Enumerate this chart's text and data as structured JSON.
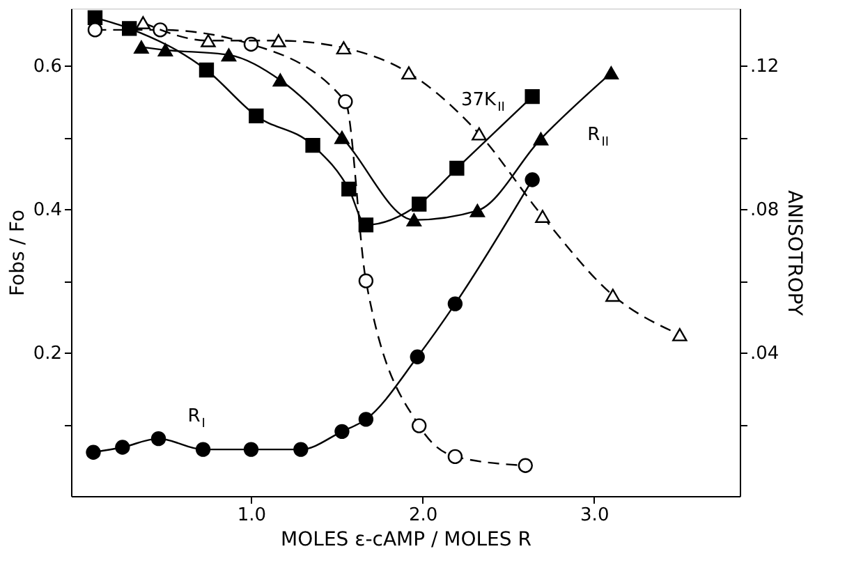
{
  "chart_data": {
    "type": "line",
    "xlabel": "MOLES ε-cAMP / MOLES R",
    "ylabel": "Fobs / Fo",
    "y2label": "ANISOTROPY",
    "xlim": [
      -0.05,
      3.85
    ],
    "xticks": [
      {
        "value": 1,
        "label": "1.0"
      },
      {
        "value": 2,
        "label": "2.0"
      },
      {
        "value": 3,
        "label": "3.0"
      }
    ],
    "ylim": [
      0,
      0.68
    ],
    "yticks": [
      {
        "value": 0.1,
        "label": null
      },
      0.2,
      {
        "value": 0.3,
        "label": null
      },
      0.4,
      {
        "value": 0.5,
        "label": null
      },
      0.6
    ],
    "y2lim": [
      0,
      0.136
    ],
    "y2ticks": [
      {
        "value": 0.02,
        "label": null
      },
      {
        "value": 0.04,
        "label": ".04"
      },
      {
        "value": 0.06,
        "label": null
      },
      {
        "value": 0.08,
        "label": ".08"
      },
      {
        "value": 0.1,
        "label": null
      },
      {
        "value": 0.12,
        "label": ".12"
      }
    ],
    "grid": false,
    "series": [
      {
        "name": "37K$_{II}$",
        "color": "#000000",
        "marker": "square",
        "line_style": "solid",
        "x": [
          0.09,
          0.29,
          0.74,
          1.03,
          1.36,
          1.57,
          1.67,
          1.98,
          2.2,
          2.64
        ],
        "values": [
          0.667,
          0.652,
          0.594,
          0.53,
          0.489,
          0.428,
          0.378,
          0.407,
          0.457,
          0.557
        ]
      },
      {
        "name": "R$_{II}$",
        "color": "#000000",
        "marker": "triangle",
        "line_style": "solid",
        "x": [
          0.36,
          0.5,
          0.87,
          1.17,
          1.53,
          1.95,
          2.32,
          2.69,
          3.1
        ],
        "values": [
          0.626,
          0.622,
          0.615,
          0.58,
          0.5,
          0.385,
          0.398,
          0.498,
          0.59
        ]
      },
      {
        "name": "R$_{I}$",
        "color": "#000000",
        "marker": "circle",
        "line_style": "solid",
        "x": [
          0.08,
          0.25,
          0.46,
          0.72,
          1.0,
          1.29,
          1.53,
          1.67,
          1.97,
          2.19,
          2.64
        ],
        "values": [
          0.061,
          0.068,
          0.08,
          0.065,
          0.065,
          0.065,
          0.09,
          0.107,
          0.194,
          0.268,
          0.441
        ]
      },
      {
        "color": "#000000",
        "marker": "circle",
        "line_style": "dashed",
        "axis": "y2",
        "x": [
          0.09,
          0.47,
          1.0,
          1.55,
          1.67,
          1.98,
          2.19,
          2.6
        ],
        "values": [
          0.13,
          0.13,
          0.126,
          0.11,
          0.06,
          0.0196,
          0.011,
          0.0085
        ]
      },
      {
        "color": "#000000",
        "marker": "triangle",
        "line_style": "dashed",
        "axis": "y2",
        "x": [
          0.37,
          0.75,
          1.16,
          1.54,
          1.92,
          2.33,
          2.7,
          3.11,
          3.5
        ],
        "values": [
          0.132,
          0.127,
          0.127,
          0.125,
          0.118,
          0.101,
          0.078,
          0.056,
          0.045
        ]
      }
    ]
  }
}
